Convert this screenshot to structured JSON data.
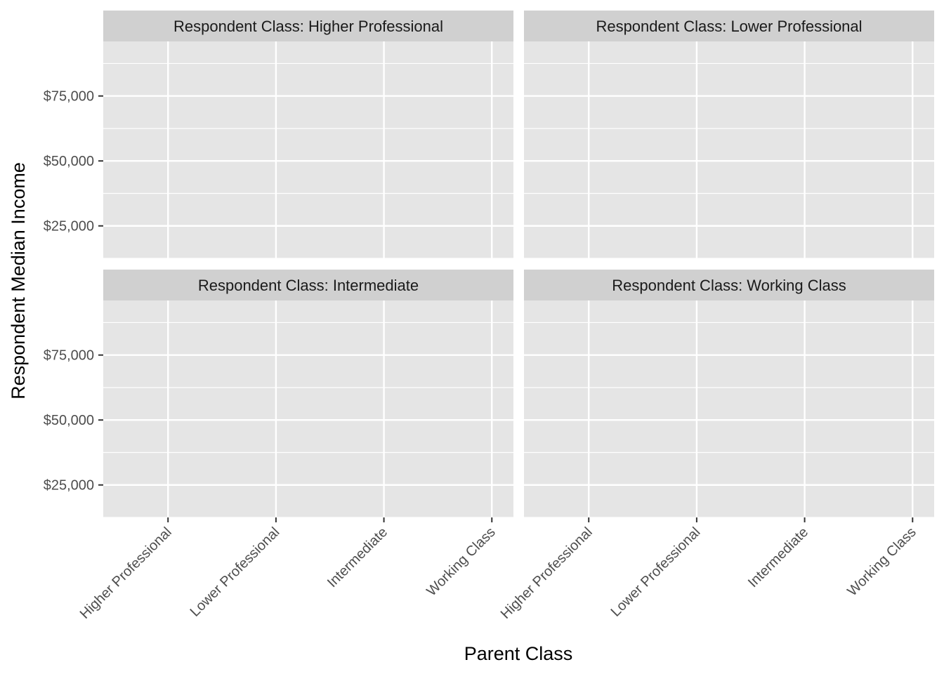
{
  "chart_data": {
    "type": "scatter",
    "facet_by": "Respondent Class",
    "facets": [
      {
        "strip": "Respondent Class: Higher Professional",
        "points": []
      },
      {
        "strip": "Respondent Class: Lower Professional",
        "points": []
      },
      {
        "strip": "Respondent Class: Intermediate",
        "points": []
      },
      {
        "strip": "Respondent Class: Working Class",
        "points": []
      }
    ],
    "categories": [
      "Higher Professional",
      "Lower Professional",
      "Intermediate",
      "Working Class"
    ],
    "xlabel": "Parent Class",
    "ylabel": "Respondent Median Income",
    "ylim": [
      12500,
      96000
    ],
    "y_ticks": [
      25000,
      50000,
      75000
    ],
    "y_tick_labels": [
      "$25,000",
      "$50,000",
      "$75,000"
    ],
    "grid": true,
    "colors": {
      "panel_background": "#e5e5e5",
      "strip_background": "#d0d0d0",
      "grid": "#ffffff",
      "tick": "#333333"
    }
  }
}
